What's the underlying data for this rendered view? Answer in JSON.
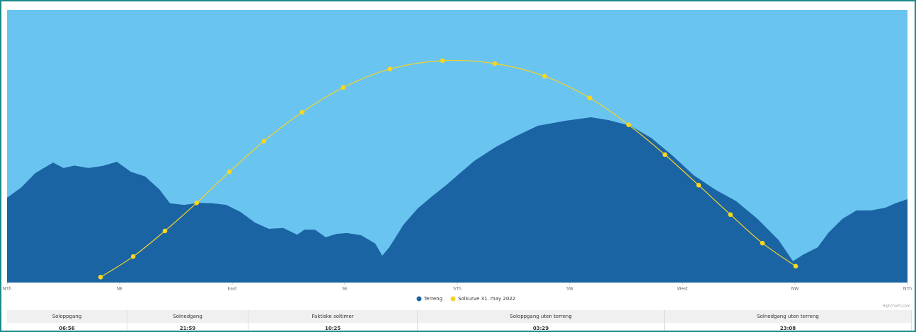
{
  "chart_data": {
    "type": "area",
    "xlim": [
      0,
      360
    ],
    "ylim": [
      0,
      65
    ],
    "xticks": [
      {
        "value": 0,
        "label": "N'th"
      },
      {
        "value": 45,
        "label": "NE"
      },
      {
        "value": 90,
        "label": "East"
      },
      {
        "value": 135,
        "label": "SE"
      },
      {
        "value": 180,
        "label": "S'th"
      },
      {
        "value": 225,
        "label": "SW"
      },
      {
        "value": 270,
        "label": "West"
      },
      {
        "value": 315,
        "label": "NW"
      },
      {
        "value": 360,
        "label": "N'th"
      }
    ],
    "legend": "bottom",
    "credits": "Highcharts.com",
    "series": [
      {
        "name": "Terreng",
        "type": "area",
        "color": "#1b64a4",
        "x": [
          0,
          5.7,
          11.3,
          18.4,
          22.6,
          26.9,
          32.5,
          38.2,
          43.9,
          49.5,
          55.2,
          60.9,
          65.1,
          70.8,
          76.4,
          82.1,
          87.7,
          93.4,
          99.1,
          104.7,
          110.4,
          116.0,
          118.9,
          123.1,
          127.4,
          131.6,
          135.8,
          141.5,
          147.2,
          150.0,
          152.8,
          158.5,
          164.2,
          169.8,
          175.5,
          181.1,
          186.8,
          195.3,
          203.8,
          212.3,
          223.6,
          233.5,
          240.6,
          249.1,
          257.5,
          266.0,
          274.5,
          283.0,
          291.5,
          300.0,
          308.5,
          314.2,
          318.4,
          324.1,
          328.3,
          334.0,
          339.6,
          345.3,
          351.0,
          355.2,
          360
        ],
        "values": [
          20.2,
          22.7,
          26.1,
          28.6,
          27.3,
          27.9,
          27.3,
          27.8,
          28.8,
          26.4,
          25.3,
          22.2,
          18.9,
          18.5,
          19.0,
          18.9,
          18.5,
          16.8,
          14.3,
          12.8,
          13.0,
          11.4,
          12.6,
          12.6,
          10.8,
          11.6,
          11.8,
          11.3,
          9.3,
          6.4,
          8.4,
          13.8,
          17.7,
          20.5,
          23.2,
          26.1,
          29.0,
          32.3,
          35.0,
          37.4,
          38.6,
          39.4,
          38.7,
          37.4,
          34.5,
          30.3,
          25.6,
          22.2,
          19.4,
          15.2,
          10.1,
          5.1,
          6.7,
          8.4,
          11.8,
          15.2,
          17.2,
          17.2,
          17.8,
          18.9,
          19.9
        ]
      },
      {
        "name": "Solkurve 31. may 2022",
        "type": "line",
        "color": "#f5d327",
        "x": [
          37.4,
          50.4,
          63.1,
          75.8,
          88.9,
          102.7,
          118.0,
          134.4,
          153.1,
          174.1,
          195.0,
          214.9,
          233.0,
          248.5,
          263.0,
          276.5,
          289.2,
          302.0,
          315.3
        ],
        "values": [
          1.3,
          6.2,
          12.3,
          19.0,
          26.4,
          33.7,
          40.6,
          46.5,
          50.9,
          52.9,
          52.2,
          49.2,
          44.0,
          37.6,
          30.5,
          23.2,
          16.2,
          9.4,
          3.9
        ]
      }
    ]
  },
  "table": {
    "headers": [
      "Soloppgang",
      "Solnedgang",
      "Faktiske soltimer",
      "Soloppgang uten terreng",
      "Solnedgang uten terreng"
    ],
    "rows": [
      [
        "06:56",
        "21:59",
        "10:25",
        "03:29",
        "23:08"
      ]
    ]
  }
}
